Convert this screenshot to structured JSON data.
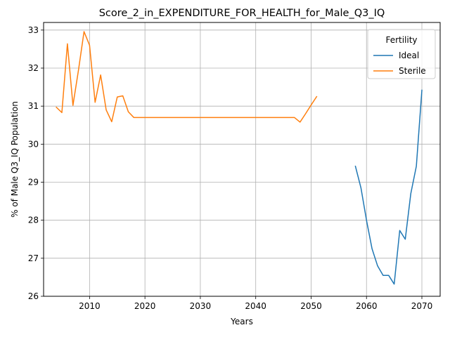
{
  "chart_data": {
    "type": "line",
    "title": "Score_2_in_EXPENDITURE_FOR_HEALTH_for_Male_Q3_IQ",
    "xlabel": "Years",
    "ylabel": "% of Male Q3_IQ Population",
    "xlim": [
      2001.7,
      2073.3
    ],
    "ylim": [
      26.0,
      33.2
    ],
    "x_ticks": [
      2010,
      2020,
      2030,
      2040,
      2050,
      2060,
      2070
    ],
    "y_ticks": [
      26,
      27,
      28,
      29,
      30,
      31,
      32,
      33
    ],
    "grid": true,
    "legend": {
      "title": "Fertility",
      "position": "top-right"
    },
    "series": [
      {
        "name": "Ideal",
        "color": "#1f77b4",
        "x": [
          2058,
          2059,
          2060,
          2061,
          2062,
          2063,
          2064,
          2065,
          2066,
          2067,
          2068,
          2069,
          2070
        ],
        "y": [
          29.42,
          28.85,
          28.0,
          27.25,
          26.8,
          26.55,
          26.55,
          26.32,
          27.73,
          27.5,
          28.7,
          29.42,
          31.42
        ]
      },
      {
        "name": "Sterile",
        "color": "#ff7f0e",
        "x": [
          2004,
          2005,
          2006,
          2007,
          2008,
          2009,
          2010,
          2011,
          2012,
          2013,
          2014,
          2015,
          2016,
          2017,
          2018,
          2019,
          2020,
          2021,
          2022,
          2023,
          2024,
          2025,
          2026,
          2027,
          2028,
          2029,
          2030,
          2031,
          2032,
          2033,
          2034,
          2035,
          2036,
          2037,
          2038,
          2039,
          2040,
          2041,
          2042,
          2043,
          2044,
          2045,
          2046,
          2047,
          2048,
          2049,
          2050,
          2051
        ],
        "y": [
          30.97,
          30.83,
          32.64,
          31.02,
          31.95,
          32.96,
          32.6,
          31.1,
          31.82,
          30.9,
          30.59,
          31.24,
          31.27,
          30.85,
          30.7,
          30.7,
          30.7,
          30.7,
          30.7,
          30.7,
          30.7,
          30.7,
          30.7,
          30.7,
          30.7,
          30.7,
          30.7,
          30.7,
          30.7,
          30.7,
          30.7,
          30.7,
          30.7,
          30.7,
          30.7,
          30.7,
          30.7,
          30.7,
          30.7,
          30.7,
          30.7,
          30.7,
          30.7,
          30.7,
          30.58,
          30.8,
          31.03,
          31.25
        ]
      }
    ]
  }
}
